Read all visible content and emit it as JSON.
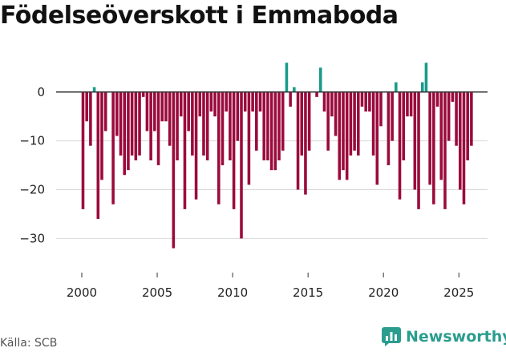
{
  "source": "Källa: SCB",
  "brand": "Newsworthy",
  "colors": {
    "positive": "#1a9a8b",
    "negative": "#9b0a3c",
    "grid": "#d9d9d9",
    "zero": "#333333",
    "brand": "#2a9d8f"
  },
  "chart_data": {
    "type": "bar",
    "title": "Födelseöverskott i Emmaboda",
    "xlabel": "",
    "ylabel": "",
    "ylim": [
      -37,
      9
    ],
    "xlim": [
      1998.3,
      2026.9
    ],
    "yticks": [
      0,
      -10,
      -20,
      -30
    ],
    "ytick_labels": [
      "0",
      "−10",
      "−20",
      "−30"
    ],
    "xticks": [
      2000,
      2005,
      2010,
      2015,
      2020,
      2025
    ],
    "xtick_labels": [
      "2000",
      "2005",
      "2010",
      "2015",
      "2020",
      "2025"
    ],
    "bar_width_years": 0.19,
    "x": [
      2000.08,
      2000.33,
      2000.58,
      2000.83,
      2001.08,
      2001.33,
      2001.58,
      2001.83,
      2002.08,
      2002.33,
      2002.58,
      2002.83,
      2003.08,
      2003.33,
      2003.58,
      2003.83,
      2004.08,
      2004.33,
      2004.58,
      2004.83,
      2005.08,
      2005.33,
      2005.58,
      2005.83,
      2006.08,
      2006.33,
      2006.58,
      2006.83,
      2007.08,
      2007.33,
      2007.58,
      2007.83,
      2008.08,
      2008.33,
      2008.58,
      2008.83,
      2009.08,
      2009.33,
      2009.58,
      2009.83,
      2010.08,
      2010.33,
      2010.58,
      2010.83,
      2011.08,
      2011.33,
      2011.58,
      2011.83,
      2012.08,
      2012.33,
      2012.58,
      2012.83,
      2013.08,
      2013.33,
      2013.58,
      2013.83,
      2014.08,
      2014.33,
      2014.58,
      2014.83,
      2015.08,
      2015.33,
      2015.58,
      2015.83,
      2016.08,
      2016.33,
      2016.58,
      2016.83,
      2017.08,
      2017.33,
      2017.58,
      2017.83,
      2018.08,
      2018.33,
      2018.58,
      2018.83,
      2019.08,
      2019.33,
      2019.58,
      2019.83,
      2020.08,
      2020.33,
      2020.58,
      2020.83,
      2021.08,
      2021.33,
      2021.58,
      2021.83,
      2022.08,
      2022.33,
      2022.58,
      2022.83,
      2023.08,
      2023.33,
      2023.58,
      2023.83,
      2024.08,
      2024.33,
      2024.58,
      2024.83,
      2025.08,
      2025.33,
      2025.58,
      2025.83
    ],
    "values": [
      -24,
      -6,
      -11,
      1,
      -26,
      -18,
      -8,
      0,
      -23,
      -9,
      -13,
      -17,
      -16,
      -13,
      -14,
      -13,
      -1,
      -8,
      -14,
      -8,
      -15,
      -6,
      -6,
      -11,
      -32,
      -14,
      -5,
      -24,
      -8,
      -13,
      -22,
      -5,
      -13,
      -14,
      -4,
      -5,
      -23,
      -15,
      -4,
      -14,
      -24,
      -10,
      -30,
      -4,
      -19,
      -4,
      -12,
      -4,
      -14,
      -14,
      -16,
      -16,
      -14,
      -12,
      6,
      -3,
      1,
      -20,
      -13,
      -21,
      -12,
      0,
      -1,
      5,
      -4,
      -12,
      -5,
      -9,
      -18,
      -16,
      -18,
      -13,
      -12,
      -13,
      -3,
      -4,
      -4,
      -13,
      -19,
      -7,
      0,
      -15,
      -10,
      2,
      -22,
      -14,
      -5,
      -5,
      -20,
      -24,
      2,
      6,
      -19,
      -23,
      -3,
      -18,
      -24,
      -10,
      -2,
      -11,
      -20,
      -23,
      -14,
      -11
    ]
  }
}
